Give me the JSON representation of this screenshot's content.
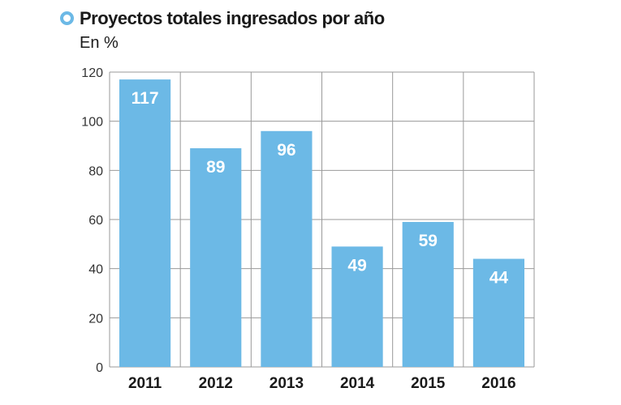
{
  "chart_data": {
    "type": "bar",
    "title": "Proyectos totales ingresados por año",
    "subtitle": "En %",
    "categories": [
      "2011",
      "2012",
      "2013",
      "2014",
      "2015",
      "2016"
    ],
    "values": [
      117,
      89,
      96,
      49,
      59,
      44
    ],
    "ylim": [
      0,
      120
    ],
    "yticks": [
      0,
      20,
      40,
      60,
      80,
      100,
      120
    ],
    "grid": true,
    "bar_color": "#6cb9e6",
    "label_color": "#ffffff"
  }
}
